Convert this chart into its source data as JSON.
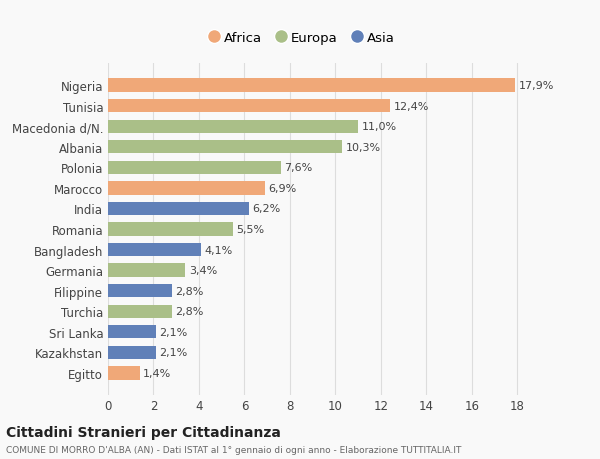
{
  "categories": [
    "Nigeria",
    "Tunisia",
    "Macedonia d/N.",
    "Albania",
    "Polonia",
    "Marocco",
    "India",
    "Romania",
    "Bangladesh",
    "Germania",
    "Filippine",
    "Turchia",
    "Sri Lanka",
    "Kazakhstan",
    "Egitto"
  ],
  "values": [
    17.9,
    12.4,
    11.0,
    10.3,
    7.6,
    6.9,
    6.2,
    5.5,
    4.1,
    3.4,
    2.8,
    2.8,
    2.1,
    2.1,
    1.4
  ],
  "labels": [
    "17,9%",
    "12,4%",
    "11,0%",
    "10,3%",
    "7,6%",
    "6,9%",
    "6,2%",
    "5,5%",
    "4,1%",
    "3,4%",
    "2,8%",
    "2,8%",
    "2,1%",
    "2,1%",
    "1,4%"
  ],
  "continents": [
    "Africa",
    "Africa",
    "Europa",
    "Europa",
    "Europa",
    "Africa",
    "Asia",
    "Europa",
    "Asia",
    "Europa",
    "Asia",
    "Europa",
    "Asia",
    "Asia",
    "Africa"
  ],
  "colors": {
    "Africa": "#F0A878",
    "Europa": "#AABF88",
    "Asia": "#6080B8"
  },
  "legend_order": [
    "Africa",
    "Europa",
    "Asia"
  ],
  "title": "Cittadini Stranieri per Cittadinanza",
  "subtitle": "COMUNE DI MORRO D'ALBA (AN) - Dati ISTAT al 1° gennaio di ogni anno - Elaborazione TUTTITALIA.IT",
  "xlim": [
    0,
    19
  ],
  "xticks": [
    0,
    2,
    4,
    6,
    8,
    10,
    12,
    14,
    16,
    18
  ],
  "background_color": "#f9f9f9",
  "grid_color": "#dddddd",
  "bar_height": 0.65
}
